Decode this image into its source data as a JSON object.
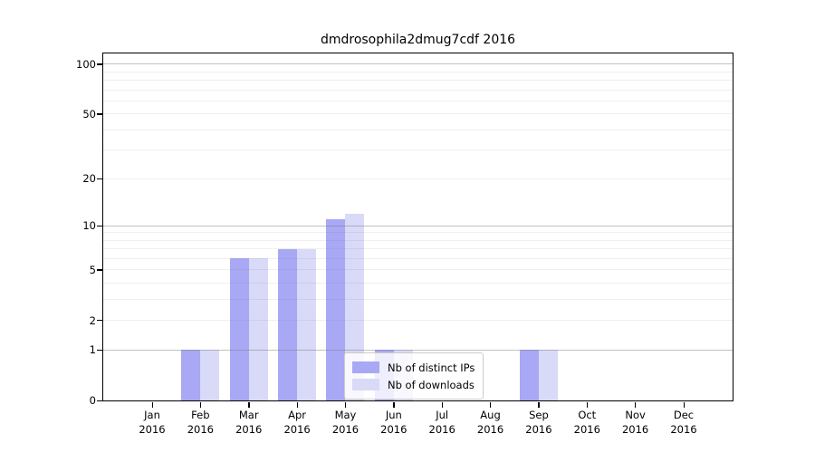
{
  "figure": {
    "background": "#ffffff"
  },
  "chart_data": {
    "type": "bar",
    "title": "dmdrosophila2dmug7cdf 2016",
    "months": [
      "Jan",
      "Feb",
      "Mar",
      "Apr",
      "May",
      "Jun",
      "Jul",
      "Aug",
      "Sep",
      "Oct",
      "Nov",
      "Dec"
    ],
    "year": "2016",
    "series": [
      {
        "name": "Nb of distinct IPs",
        "color": "#a8a8f5",
        "values": [
          0,
          1,
          6,
          7,
          11,
          1,
          0,
          0,
          1,
          0,
          0,
          0
        ]
      },
      {
        "name": "Nb of downloads",
        "color": "#d9d9f8",
        "values": [
          0,
          1,
          6,
          7,
          12,
          1,
          0,
          0,
          1,
          0,
          0,
          0
        ]
      }
    ],
    "y_ticks": [
      0,
      1,
      2,
      5,
      10,
      20,
      50,
      100
    ],
    "y_scale": "log1p",
    "y_max": 116,
    "ylim": [
      0,
      116
    ],
    "grid_major_values": [
      1,
      10,
      100
    ],
    "grid_minor_values": [
      2,
      3,
      4,
      5,
      6,
      7,
      8,
      9,
      20,
      30,
      40,
      50,
      60,
      70,
      80,
      90
    ],
    "grid": "on",
    "legend_position": "lower center",
    "xlabel": "",
    "ylabel": ""
  },
  "colors": {
    "axis": "#000000",
    "grid_major": "#c0c0c0",
    "grid_minor": "#ececec"
  }
}
